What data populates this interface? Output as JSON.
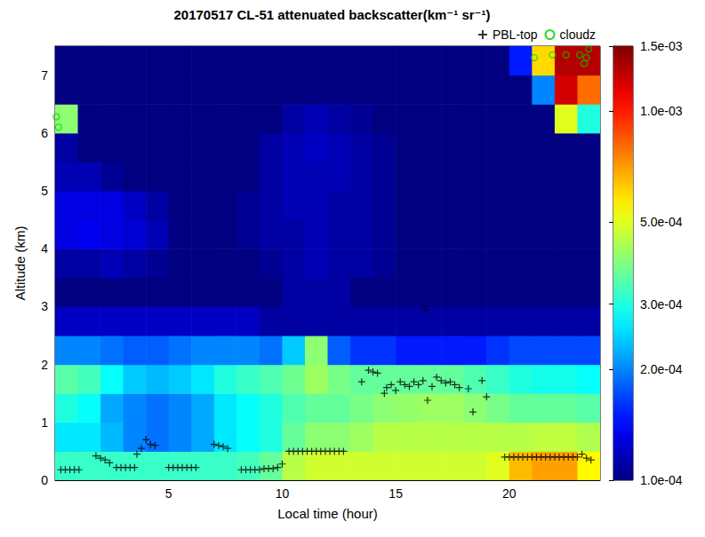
{
  "chart_data": {
    "type": "heatmap",
    "title": "20170517 CL-51 attenuated backscatter(km⁻¹ sr⁻¹)",
    "x_label": "Local time (hour)",
    "y_label": "Altitude (km)",
    "xlim": [
      0,
      24
    ],
    "xticks": [
      5,
      10,
      15,
      20
    ],
    "ylim": [
      0,
      7.5
    ],
    "yticks": [
      0,
      1,
      2,
      3,
      4,
      5,
      6,
      7
    ],
    "grid": false,
    "legend": "top",
    "cells": {
      "x_edges": [
        0,
        1,
        2,
        3,
        4,
        5,
        6,
        7,
        8,
        9,
        10,
        11,
        12,
        13,
        14,
        15,
        16,
        17,
        18,
        19,
        20,
        21,
        22,
        23,
        24
      ],
      "y_edges": [
        0,
        0.5,
        1,
        1.5,
        2,
        2.5,
        3,
        3.5,
        4,
        4.5,
        5,
        5.5,
        6,
        6.5,
        7,
        7.5
      ],
      "values": [
        [
          0.00032,
          0.00032,
          0.00032,
          0.00032,
          0.00032,
          0.00032,
          0.00032,
          0.00032,
          0.00033,
          0.00036,
          0.00045,
          0.00048,
          0.00048,
          0.00048,
          0.00048,
          0.00048,
          0.00048,
          0.00048,
          0.00048,
          0.0005,
          0.00065,
          0.0007,
          0.0007,
          0.00055
        ],
        [
          0.00026,
          0.00026,
          0.00023,
          0.0002,
          0.00019,
          0.0002,
          0.00022,
          0.00026,
          0.00028,
          0.0003,
          0.00036,
          0.0004,
          0.0004,
          0.00042,
          0.00045,
          0.00045,
          0.00045,
          0.00045,
          0.00045,
          0.00045,
          0.00045,
          0.00046,
          0.00046,
          0.00044
        ],
        [
          0.0003,
          0.00028,
          0.00022,
          0.0002,
          0.00019,
          0.0002,
          0.00022,
          0.00026,
          0.00028,
          0.0003,
          0.00034,
          0.00036,
          0.00036,
          0.00038,
          0.0004,
          0.00041,
          0.00042,
          0.00042,
          0.0004,
          0.00038,
          0.00036,
          0.00036,
          0.00036,
          0.00035
        ],
        [
          0.00035,
          0.00033,
          0.00028,
          0.00024,
          0.00023,
          0.00024,
          0.00026,
          0.0003,
          0.00032,
          0.00034,
          0.00037,
          0.00042,
          0.00038,
          0.00036,
          0.00036,
          0.00036,
          0.00036,
          0.00036,
          0.00034,
          0.00032,
          0.0003,
          0.00029,
          0.00029,
          0.00028
        ],
        [
          0.0002,
          0.0002,
          0.00019,
          0.00018,
          0.00018,
          0.00019,
          0.0002,
          0.0002,
          0.0002,
          0.00019,
          0.00024,
          0.0004,
          0.00018,
          0.00016,
          0.00016,
          0.00015,
          0.00015,
          0.00015,
          0.00015,
          0.00016,
          0.00017,
          0.00017,
          0.00017,
          0.00017
        ],
        [
          0.00012,
          0.00012,
          0.00012,
          0.00012,
          0.00012,
          0.00012,
          0.00012,
          0.00012,
          0.00012,
          0.00011,
          0.00011,
          0.00011,
          0.00011,
          0.00011,
          0.00011,
          0.00011,
          0.00011,
          0.00011,
          0.00011,
          0.00011,
          0.00011,
          0.00011,
          0.00011,
          0.00011
        ],
        [
          0.0001,
          0.0001,
          0.0001,
          0.0001,
          0.0001,
          0.0001,
          0.0001,
          0.0001,
          0.0001,
          0.0001,
          0.00011,
          0.00011,
          0.00011,
          0.0001,
          0.0001,
          0.0001,
          0.0001,
          0.0001,
          0.0001,
          0.0001,
          0.0001,
          0.0001,
          0.0001,
          0.0001
        ],
        [
          0.00011,
          0.00011,
          0.000115,
          0.00011,
          0.000105,
          0.0001,
          0.0001,
          0.0001,
          0.0001,
          0.000105,
          0.00011,
          0.000115,
          0.00011,
          0.00011,
          0.000105,
          0.0001,
          0.0001,
          0.0001,
          0.0001,
          0.0001,
          0.0001,
          0.0001,
          0.0001,
          0.0001
        ],
        [
          0.00013,
          0.000135,
          0.00013,
          0.000125,
          0.000115,
          0.0001,
          0.0001,
          0.0001,
          0.000105,
          0.00011,
          0.00011,
          0.000115,
          0.00011,
          0.00011,
          0.000105,
          0.0001,
          0.0001,
          0.0001,
          0.0001,
          0.0001,
          0.0001,
          0.0001,
          0.0001,
          0.0001
        ],
        [
          0.00013,
          0.00013,
          0.00013,
          0.00012,
          0.00011,
          0.0001,
          0.0001,
          0.0001,
          0.000105,
          0.00011,
          0.000115,
          0.000115,
          0.00011,
          0.00011,
          0.000105,
          0.0001,
          0.0001,
          0.0001,
          0.0001,
          0.0001,
          0.0001,
          0.0001,
          0.0001,
          0.0001
        ],
        [
          0.000115,
          0.000115,
          0.000105,
          0.0001,
          0.0001,
          0.0001,
          0.0001,
          0.0001,
          0.0001,
          0.00011,
          0.000115,
          0.000115,
          0.000115,
          0.00011,
          0.000105,
          0.0001,
          0.0001,
          0.0001,
          0.0001,
          0.0001,
          0.0001,
          0.0001,
          0.0001,
          0.0001
        ],
        [
          0.00011,
          0.0001,
          0.0001,
          0.0001,
          0.0001,
          0.0001,
          0.0001,
          0.0001,
          0.0001,
          0.00011,
          0.000115,
          0.00012,
          0.000115,
          0.00011,
          0.000105,
          0.0001,
          0.0001,
          0.0001,
          0.0001,
          0.0001,
          0.0001,
          0.0001,
          0.0001,
          0.0001
        ],
        [
          0.0004,
          0.0001,
          0.0001,
          0.0001,
          0.0001,
          0.0001,
          0.0001,
          0.0001,
          0.0001,
          0.0001,
          0.00011,
          0.000115,
          0.00011,
          0.000105,
          0.0001,
          0.0001,
          0.0001,
          0.0001,
          0.0001,
          0.0001,
          0.0001,
          0.0001,
          0.0005,
          0.0003
        ],
        [
          0.0001,
          0.0001,
          0.0001,
          0.0001,
          0.0001,
          0.0001,
          0.0001,
          0.0001,
          0.0001,
          0.0001,
          0.0001,
          0.0001,
          0.0001,
          0.0001,
          0.0001,
          0.0001,
          0.0001,
          0.0001,
          0.0001,
          0.0001,
          0.0001,
          0.0002,
          0.0012,
          0.0008
        ],
        [
          0.0001,
          0.0001,
          0.0001,
          0.0001,
          0.0001,
          0.0001,
          0.0001,
          0.0001,
          0.0001,
          0.0001,
          0.0001,
          0.0001,
          0.0001,
          0.0001,
          0.0001,
          0.0001,
          0.0001,
          0.0001,
          0.0001,
          0.0001,
          0.00015,
          0.0006,
          0.0013,
          0.0013
        ]
      ]
    },
    "colorbar": {
      "range": [
        0.0001,
        0.0015
      ],
      "log": true,
      "ticks": [
        {
          "value": 0.0001,
          "label": "1.0e-04"
        },
        {
          "value": 0.0002,
          "label": "2.0e-04"
        },
        {
          "value": 0.0003,
          "label": "3.0e-04"
        },
        {
          "value": 0.0005,
          "label": "5.0e-04"
        },
        {
          "value": 0.001,
          "label": "1.0e-03"
        },
        {
          "value": 0.0015,
          "label": "1.5e-03"
        }
      ]
    },
    "series": [
      {
        "name": "PBL-top",
        "type": "scatter",
        "marker": "+",
        "color": "#000000",
        "x": [
          0.25,
          0.45,
          0.65,
          0.85,
          1.05,
          1.8,
          2.0,
          2.2,
          2.4,
          2.7,
          2.9,
          3.1,
          3.3,
          3.5,
          3.6,
          3.8,
          4.0,
          4.2,
          4.4,
          5.0,
          5.2,
          5.4,
          5.6,
          5.8,
          6.0,
          6.2,
          7.0,
          7.2,
          7.4,
          7.6,
          8.2,
          8.4,
          8.6,
          8.8,
          9.0,
          9.2,
          9.4,
          9.6,
          9.8,
          10.0,
          10.3,
          10.5,
          10.7,
          10.9,
          11.1,
          11.3,
          11.5,
          11.7,
          11.9,
          12.1,
          12.3,
          12.5,
          12.7,
          13.5,
          13.8,
          14.0,
          14.2,
          14.5,
          14.6,
          14.8,
          15.0,
          15.2,
          15.4,
          15.6,
          15.8,
          16.0,
          16.2,
          16.4,
          16.6,
          16.8,
          17.0,
          17.2,
          17.4,
          17.6,
          17.8,
          18.2,
          18.4,
          18.8,
          19.0,
          16.3,
          19.8,
          20.0,
          20.2,
          20.4,
          20.6,
          20.8,
          21.0,
          21.2,
          21.4,
          21.6,
          21.8,
          22.0,
          22.2,
          22.4,
          22.6,
          22.8,
          23.0,
          23.2,
          23.4,
          23.6
        ],
        "values": [
          0.18,
          0.18,
          0.18,
          0.18,
          0.18,
          0.42,
          0.38,
          0.35,
          0.3,
          0.22,
          0.22,
          0.22,
          0.22,
          0.22,
          0.45,
          0.55,
          0.7,
          0.62,
          0.6,
          0.22,
          0.22,
          0.22,
          0.22,
          0.22,
          0.22,
          0.22,
          0.62,
          0.6,
          0.58,
          0.55,
          0.18,
          0.18,
          0.18,
          0.18,
          0.18,
          0.2,
          0.2,
          0.2,
          0.22,
          0.28,
          0.5,
          0.5,
          0.5,
          0.5,
          0.5,
          0.5,
          0.5,
          0.5,
          0.5,
          0.5,
          0.5,
          0.5,
          0.5,
          1.7,
          1.9,
          1.87,
          1.85,
          1.5,
          1.6,
          1.65,
          1.55,
          1.7,
          1.65,
          1.62,
          1.7,
          1.65,
          1.72,
          1.38,
          1.62,
          1.78,
          1.72,
          1.68,
          1.7,
          1.65,
          1.6,
          1.58,
          1.18,
          1.72,
          1.44,
          2.95,
          0.4,
          0.4,
          0.4,
          0.4,
          0.4,
          0.4,
          0.4,
          0.4,
          0.4,
          0.4,
          0.4,
          0.4,
          0.4,
          0.4,
          0.4,
          0.4,
          0.4,
          0.45,
          0.38,
          0.35
        ]
      },
      {
        "name": "cloudz",
        "type": "scatter",
        "marker": "o",
        "color": "#00cc00",
        "x": [
          0.05,
          0.15,
          21.1,
          21.9,
          22.5,
          23.1,
          23.3,
          23.4,
          23.5
        ],
        "values": [
          6.28,
          6.1,
          7.3,
          7.35,
          7.35,
          7.35,
          7.2,
          7.3,
          7.45
        ]
      }
    ]
  }
}
